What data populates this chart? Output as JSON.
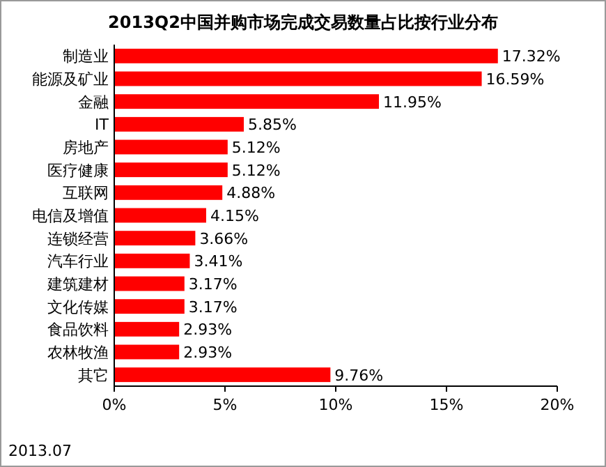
{
  "chart_data": {
    "type": "bar",
    "orientation": "horizontal",
    "title": "2013Q2中国并购市场完成交易数量占比按行业分布",
    "categories": [
      "制造业",
      "能源及矿业",
      "金融",
      "IT",
      "房地产",
      "医疗健康",
      "互联网",
      "电信及增值",
      "连锁经营",
      "汽车行业",
      "建筑建材",
      "文化传媒",
      "食品饮料",
      "农林牧渔",
      "其它"
    ],
    "values": [
      17.32,
      16.59,
      11.95,
      5.85,
      5.12,
      5.12,
      4.88,
      4.15,
      3.66,
      3.41,
      3.17,
      3.17,
      2.93,
      2.93,
      9.76
    ],
    "value_labels": [
      "17.32%",
      "16.59%",
      "11.95%",
      "5.85%",
      "5.12%",
      "5.12%",
      "4.88%",
      "4.15%",
      "3.66%",
      "3.41%",
      "3.17%",
      "3.17%",
      "2.93%",
      "2.93%",
      "9.76%"
    ],
    "color": "#ff0000",
    "xlim": [
      0,
      20
    ],
    "xticks": [
      {
        "value": 0,
        "label": "0%"
      },
      {
        "value": 5,
        "label": "5%"
      },
      {
        "value": 10,
        "label": "10%"
      },
      {
        "value": 15,
        "label": "15%"
      },
      {
        "value": 20,
        "label": "20%"
      }
    ],
    "annotations": [
      "2013.07"
    ]
  }
}
